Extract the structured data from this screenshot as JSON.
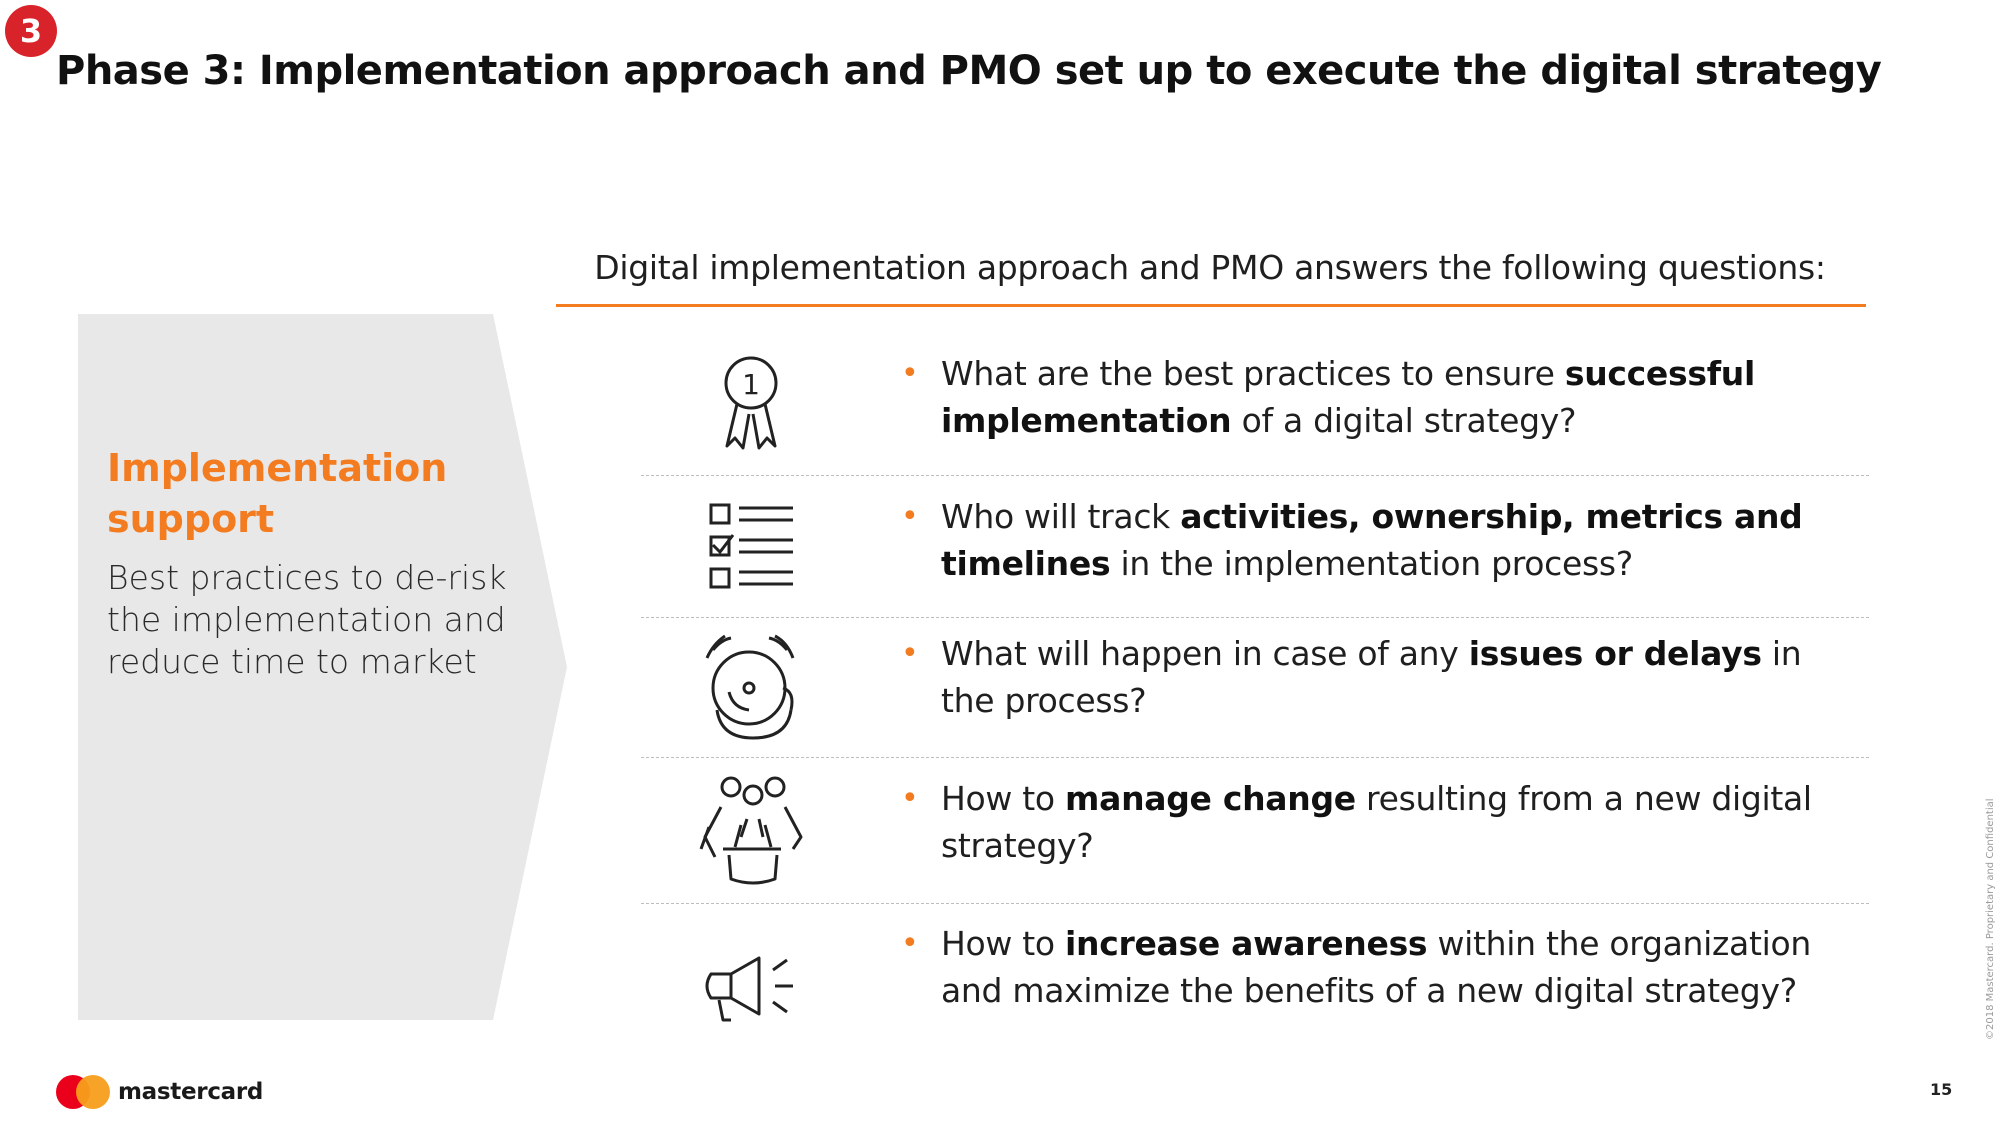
{
  "badge": "3",
  "title": "Phase 3: Implementation approach and PMO set up to execute the digital strategy",
  "left_panel": {
    "heading": "Implementation support",
    "description": "Best practices to de-risk the implementation and reduce time to market"
  },
  "section_header": "Digital implementation approach and PMO answers the following questions:",
  "questions": [
    {
      "icon": "award-ribbon-icon",
      "parts": [
        {
          "t": "What are the best practices to ensure ",
          "b": false
        },
        {
          "t": "successful implementation",
          "b": true
        },
        {
          "t": " of a digital strategy?",
          "b": false
        }
      ]
    },
    {
      "icon": "checklist-icon",
      "parts": [
        {
          "t": "Who will track ",
          "b": false
        },
        {
          "t": "activities, ownership, metrics and timelines",
          "b": true
        },
        {
          "t": " in the implementation process?",
          "b": false
        }
      ]
    },
    {
      "icon": "alarm-bell-icon",
      "parts": [
        {
          "t": "What will happen in case of any ",
          "b": false
        },
        {
          "t": "issues or delays",
          "b": true
        },
        {
          "t": " in the process?",
          "b": false
        }
      ]
    },
    {
      "icon": "team-meeting-icon",
      "parts": [
        {
          "t": "How to ",
          "b": false
        },
        {
          "t": "manage change",
          "b": true
        },
        {
          "t": " resulting from a new digital strategy?",
          "b": false
        }
      ]
    },
    {
      "icon": "megaphone-icon",
      "parts": [
        {
          "t": "How to ",
          "b": false
        },
        {
          "t": "increase awareness",
          "b": true
        },
        {
          "t": " within the organization and maximize the benefits of a new digital strategy?",
          "b": false
        }
      ]
    }
  ],
  "bullet": "•",
  "footer": {
    "brand": "mastercard",
    "page_number": "15",
    "copyright": "©2018 Mastercard. Proprietary and Confidential"
  },
  "colors": {
    "accent": "#f37b20",
    "badge": "#d8232a",
    "panel": "#e8e8e8"
  }
}
